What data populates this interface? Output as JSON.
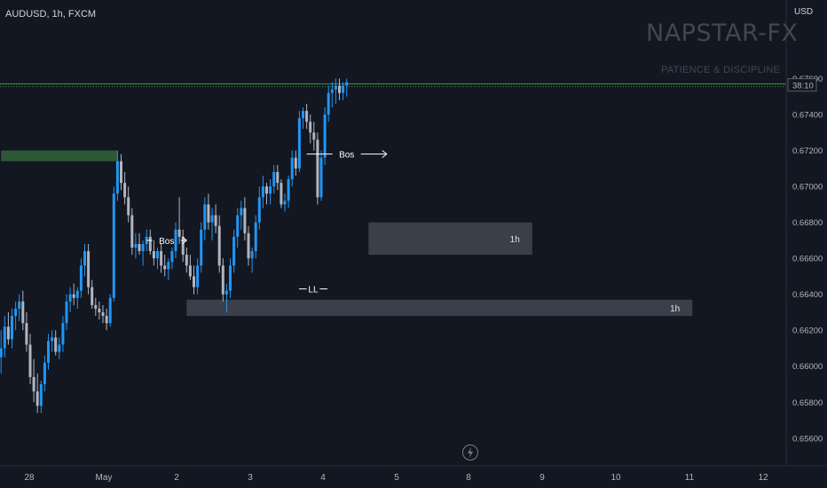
{
  "header": {
    "symbol_title": "AUDUSD, 1h, FXCM",
    "currency": "USD"
  },
  "watermark": {
    "brand": "NAPSTAR-FX",
    "tagline": "PATIENCE & DISCIPLINE"
  },
  "colors": {
    "background": "#131722",
    "bull_candle": "#2196f3",
    "bear_candle": "#b2b5be",
    "demand_zone": "#434651",
    "supply_zone": "#2e5c38",
    "price_line": "#4caf50",
    "bos_line": "#ffffff"
  },
  "chart_data": {
    "type": "candlestick",
    "symbol": "AUDUSD",
    "timeframe": "1h",
    "broker": "FXCM",
    "x_tick_labels": [
      "28",
      "May",
      "2",
      "3",
      "4",
      "5",
      "8",
      "9",
      "10",
      "11",
      "12"
    ],
    "y_tick_labels": [
      "0.67600",
      "0.67400",
      "0.67200",
      "0.67000",
      "0.66800",
      "0.66600",
      "0.66400",
      "0.66200",
      "0.66000",
      "0.65800",
      "0.65600"
    ],
    "y_ticks": [
      0.676,
      0.674,
      0.672,
      0.67,
      0.668,
      0.666,
      0.664,
      0.662,
      0.66,
      0.658,
      0.656
    ],
    "ylim": [
      0.6552,
      0.6782
    ],
    "grid": false,
    "current_price_countdown": "38:10",
    "current_price": 0.6756,
    "zones": [
      {
        "label": "",
        "kind": "supply",
        "from_day": -0.4,
        "to_day": 1.2,
        "low": 0.6714,
        "high": 0.672
      },
      {
        "label": "1h",
        "kind": "demand",
        "from_day": 4.65,
        "to_day": 6.9,
        "low": 0.6662,
        "high": 0.668
      },
      {
        "label": "1h",
        "kind": "demand",
        "from_day": 2.15,
        "to_day": 9.1,
        "low": 0.6628,
        "high": 0.6637
      }
    ],
    "annotations": [
      {
        "text": "Bos",
        "day_from": 1.6,
        "day_to": 2.15,
        "price": 0.667
      },
      {
        "text": "Bos",
        "day_from": 3.8,
        "day_to": 4.9,
        "price": 0.6718
      },
      {
        "text": "LL",
        "day_from": 3.8,
        "day_to": 3.98,
        "price": 0.6643
      }
    ],
    "candles": [
      [
        -0.4,
        0.6605,
        0.662,
        0.6596,
        0.661
      ],
      [
        -0.35,
        0.661,
        0.6628,
        0.6605,
        0.6622
      ],
      [
        -0.3,
        0.6622,
        0.663,
        0.6612,
        0.6615
      ],
      [
        -0.25,
        0.6615,
        0.6632,
        0.661,
        0.6628
      ],
      [
        -0.2,
        0.6628,
        0.6636,
        0.662,
        0.6632
      ],
      [
        -0.15,
        0.6632,
        0.664,
        0.6625,
        0.6636
      ],
      [
        -0.1,
        0.6636,
        0.6642,
        0.662,
        0.6624
      ],
      [
        -0.05,
        0.6624,
        0.663,
        0.6608,
        0.6612
      ],
      [
        0.0,
        0.6612,
        0.6618,
        0.659,
        0.6594
      ],
      [
        0.05,
        0.6594,
        0.6604,
        0.658,
        0.6586
      ],
      [
        0.1,
        0.6586,
        0.6596,
        0.6574,
        0.6578
      ],
      [
        0.15,
        0.6578,
        0.6592,
        0.6574,
        0.659
      ],
      [
        0.2,
        0.659,
        0.6606,
        0.6586,
        0.6602
      ],
      [
        0.25,
        0.6602,
        0.6618,
        0.6598,
        0.6614
      ],
      [
        0.3,
        0.6614,
        0.662,
        0.6608,
        0.6616
      ],
      [
        0.35,
        0.6616,
        0.662,
        0.6606,
        0.6608
      ],
      [
        0.4,
        0.6608,
        0.6616,
        0.6604,
        0.6612
      ],
      [
        0.45,
        0.6612,
        0.6628,
        0.6608,
        0.6624
      ],
      [
        0.5,
        0.6624,
        0.664,
        0.662,
        0.6636
      ],
      [
        0.55,
        0.6636,
        0.6644,
        0.663,
        0.664
      ],
      [
        0.6,
        0.664,
        0.6646,
        0.6634,
        0.6638
      ],
      [
        0.65,
        0.6638,
        0.6644,
        0.6632,
        0.6642
      ],
      [
        0.7,
        0.6642,
        0.666,
        0.6638,
        0.6656
      ],
      [
        0.75,
        0.6656,
        0.6668,
        0.665,
        0.6664
      ],
      [
        0.8,
        0.6664,
        0.6668,
        0.664,
        0.6644
      ],
      [
        0.85,
        0.6644,
        0.6648,
        0.6632,
        0.6634
      ],
      [
        0.9,
        0.6634,
        0.6638,
        0.6628,
        0.6632
      ],
      [
        0.95,
        0.6632,
        0.6636,
        0.6626,
        0.663
      ],
      [
        1.0,
        0.663,
        0.6634,
        0.6624,
        0.6628
      ],
      [
        1.05,
        0.6628,
        0.6632,
        0.662,
        0.6624
      ],
      [
        1.1,
        0.6624,
        0.664,
        0.6622,
        0.6638
      ],
      [
        1.15,
        0.6638,
        0.67,
        0.6636,
        0.6696
      ],
      [
        1.2,
        0.6696,
        0.672,
        0.6692,
        0.6714
      ],
      [
        1.25,
        0.6714,
        0.6718,
        0.6698,
        0.6702
      ],
      [
        1.3,
        0.6702,
        0.6708,
        0.669,
        0.6694
      ],
      [
        1.35,
        0.6694,
        0.67,
        0.668,
        0.6684
      ],
      [
        1.4,
        0.6684,
        0.6688,
        0.6662,
        0.6666
      ],
      [
        1.45,
        0.6666,
        0.6674,
        0.666,
        0.6668
      ],
      [
        1.5,
        0.6668,
        0.6674,
        0.6662,
        0.6664
      ],
      [
        1.55,
        0.6664,
        0.667,
        0.6656,
        0.6668
      ],
      [
        1.6,
        0.6668,
        0.6676,
        0.6664,
        0.6672
      ],
      [
        1.65,
        0.6672,
        0.6676,
        0.6662,
        0.6664
      ],
      [
        1.7,
        0.6664,
        0.667,
        0.6656,
        0.666
      ],
      [
        1.75,
        0.666,
        0.6666,
        0.6654,
        0.6664
      ],
      [
        1.8,
        0.6664,
        0.6668,
        0.6652,
        0.6656
      ],
      [
        1.85,
        0.6656,
        0.6662,
        0.665,
        0.6654
      ],
      [
        1.9,
        0.6654,
        0.666,
        0.6648,
        0.6658
      ],
      [
        1.95,
        0.6658,
        0.6666,
        0.6654,
        0.6664
      ],
      [
        2.0,
        0.6664,
        0.668,
        0.666,
        0.6676
      ],
      [
        2.05,
        0.6676,
        0.6694,
        0.6668,
        0.6672
      ],
      [
        2.1,
        0.6672,
        0.6676,
        0.6658,
        0.6662
      ],
      [
        2.15,
        0.6662,
        0.6666,
        0.6652,
        0.6656
      ],
      [
        2.2,
        0.6656,
        0.6662,
        0.6648,
        0.665
      ],
      [
        2.25,
        0.665,
        0.6656,
        0.664,
        0.6644
      ],
      [
        2.3,
        0.6644,
        0.666,
        0.664,
        0.6656
      ],
      [
        2.35,
        0.6656,
        0.668,
        0.6652,
        0.6676
      ],
      [
        2.4,
        0.6676,
        0.6694,
        0.667,
        0.669
      ],
      [
        2.45,
        0.669,
        0.6696,
        0.6676,
        0.668
      ],
      [
        2.5,
        0.668,
        0.6688,
        0.667,
        0.6684
      ],
      [
        2.55,
        0.6684,
        0.669,
        0.6674,
        0.6678
      ],
      [
        2.6,
        0.6678,
        0.6684,
        0.6652,
        0.6656
      ],
      [
        2.65,
        0.6656,
        0.666,
        0.6636,
        0.664
      ],
      [
        2.7,
        0.664,
        0.6646,
        0.663,
        0.6642
      ],
      [
        2.75,
        0.6642,
        0.666,
        0.6638,
        0.6656
      ],
      [
        2.8,
        0.6656,
        0.6676,
        0.6652,
        0.6672
      ],
      [
        2.85,
        0.6672,
        0.6688,
        0.6666,
        0.6684
      ],
      [
        2.9,
        0.6684,
        0.6692,
        0.6676,
        0.6688
      ],
      [
        2.95,
        0.6688,
        0.6694,
        0.667,
        0.6674
      ],
      [
        3.0,
        0.6674,
        0.6678,
        0.6656,
        0.666
      ],
      [
        3.05,
        0.666,
        0.6666,
        0.6652,
        0.6664
      ],
      [
        3.1,
        0.6664,
        0.6684,
        0.666,
        0.668
      ],
      [
        3.15,
        0.668,
        0.67,
        0.6676,
        0.6694
      ],
      [
        3.2,
        0.6694,
        0.6706,
        0.6688,
        0.67
      ],
      [
        3.25,
        0.67,
        0.6702,
        0.669,
        0.6696
      ],
      [
        3.3,
        0.6696,
        0.6704,
        0.669,
        0.67
      ],
      [
        3.35,
        0.67,
        0.6712,
        0.6696,
        0.6708
      ],
      [
        3.4,
        0.6708,
        0.6712,
        0.6698,
        0.6702
      ],
      [
        3.45,
        0.6702,
        0.6704,
        0.6688,
        0.669
      ],
      [
        3.5,
        0.669,
        0.6696,
        0.6686,
        0.6692
      ],
      [
        3.55,
        0.6692,
        0.6706,
        0.6688,
        0.6704
      ],
      [
        3.6,
        0.6704,
        0.672,
        0.67,
        0.6716
      ],
      [
        3.65,
        0.6716,
        0.672,
        0.6706,
        0.671
      ],
      [
        3.7,
        0.671,
        0.6742,
        0.6708,
        0.6738
      ],
      [
        3.75,
        0.6738,
        0.6744,
        0.6732,
        0.6742
      ],
      [
        3.8,
        0.6742,
        0.6746,
        0.6732,
        0.6736
      ],
      [
        3.85,
        0.6736,
        0.674,
        0.6724,
        0.673
      ],
      [
        3.9,
        0.673,
        0.6736,
        0.672,
        0.6726
      ],
      [
        3.95,
        0.6726,
        0.673,
        0.669,
        0.6694
      ],
      [
        4.0,
        0.6694,
        0.672,
        0.6692,
        0.6716
      ],
      [
        4.05,
        0.6716,
        0.6744,
        0.6712,
        0.674
      ],
      [
        4.1,
        0.674,
        0.6756,
        0.6736,
        0.6752
      ],
      [
        4.15,
        0.6752,
        0.6758,
        0.6744,
        0.6754
      ],
      [
        4.2,
        0.6754,
        0.676,
        0.6746,
        0.6756
      ],
      [
        4.25,
        0.6756,
        0.676,
        0.6748,
        0.6752
      ],
      [
        4.3,
        0.6752,
        0.6758,
        0.6748,
        0.6756
      ],
      [
        4.35,
        0.6756,
        0.676,
        0.675,
        0.6758
      ]
    ]
  }
}
